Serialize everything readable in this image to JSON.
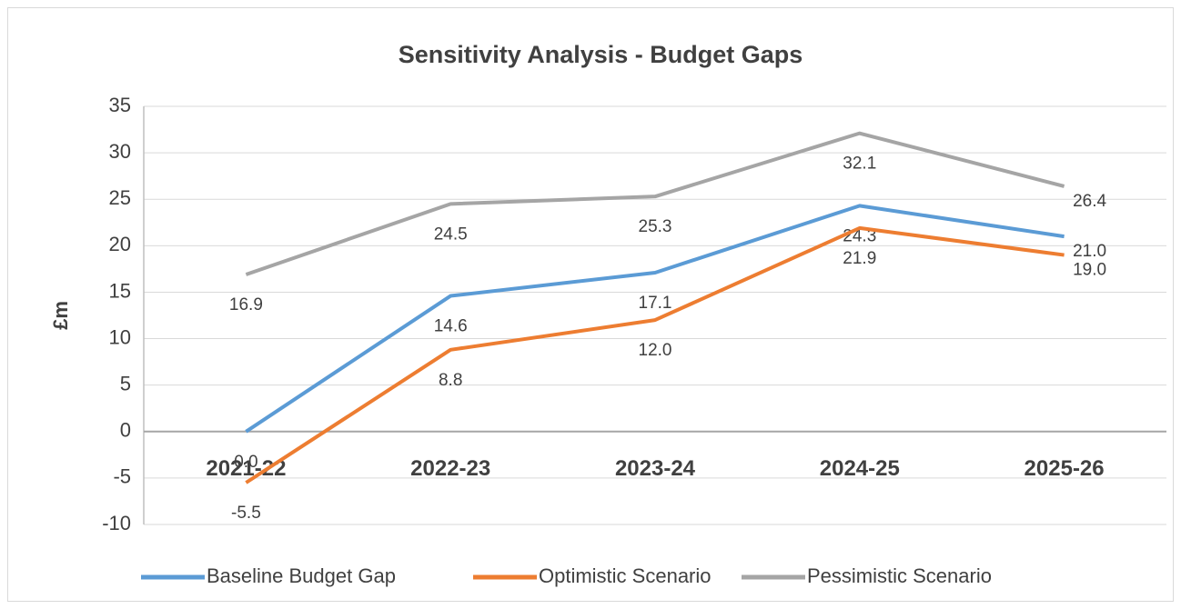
{
  "chart_data": {
    "type": "line",
    "title": "Sensitivity Analysis - Budget Gaps",
    "y_label": "£m",
    "categories": [
      "2021-22",
      "2022-23",
      "2023-24",
      "2024-25",
      "2025-26"
    ],
    "series": [
      {
        "name": "Baseline Budget Gap",
        "color": "#5b9bd5",
        "values": [
          0.0,
          14.6,
          17.1,
          24.3,
          21.0
        ],
        "value_labels": [
          "0.0",
          "14.6",
          "17.1",
          "24.3",
          "21.0"
        ]
      },
      {
        "name": "Optimistic Scenario",
        "color": "#ed7d31",
        "values": [
          -5.5,
          8.8,
          12.0,
          21.9,
          19.0
        ],
        "value_labels": [
          "-5.5",
          "8.8",
          "12.0",
          "21.9",
          "19.0"
        ]
      },
      {
        "name": "Pessimistic Scenario",
        "color": "#a5a5a5",
        "values": [
          16.9,
          24.5,
          25.3,
          32.1,
          26.4
        ],
        "value_labels": [
          "16.9",
          "24.5",
          "25.3",
          "32.1",
          "26.4"
        ]
      }
    ],
    "ylim": [
      -10,
      35
    ],
    "yticks": [
      -10,
      -5,
      0,
      5,
      10,
      15,
      20,
      25,
      30,
      35
    ],
    "grid": true,
    "legend": "bottom"
  }
}
